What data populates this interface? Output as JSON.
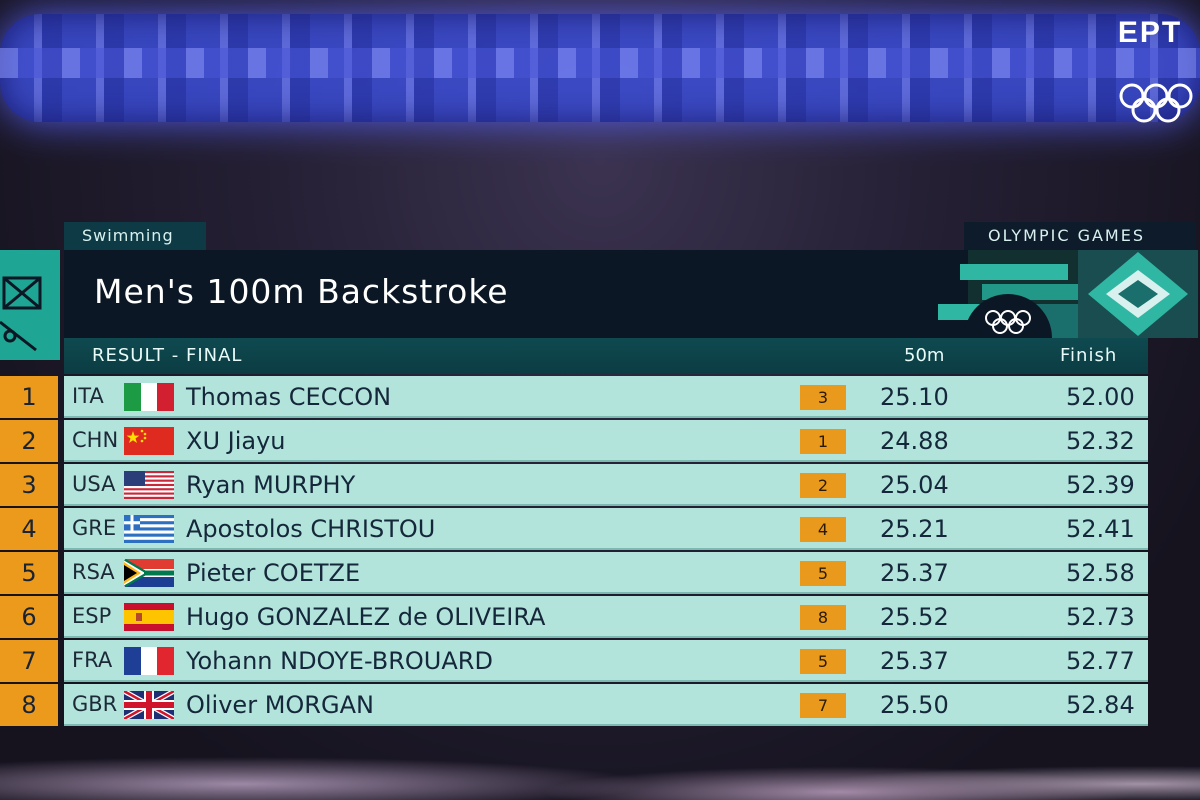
{
  "broadcaster": "EPT",
  "sport": "Swimming",
  "games": "OLYMPIC GAMES",
  "event": "Men's 100m Backstroke",
  "header": {
    "result": "RESULT - FINAL",
    "split": "50m",
    "finish": "Finish"
  },
  "colors": {
    "accent": "#ec9a1b",
    "row_bg": "#b3e4dc",
    "panel": "#0b1724",
    "teal": "#1fa593"
  },
  "results": [
    {
      "rank": "1",
      "noc": "ITA",
      "name": "Thomas CECCON",
      "lane": "3",
      "split": "25.10",
      "finish": "52.00"
    },
    {
      "rank": "2",
      "noc": "CHN",
      "name": "XU Jiayu",
      "lane": "1",
      "split": "24.88",
      "finish": "52.32"
    },
    {
      "rank": "3",
      "noc": "USA",
      "name": "Ryan MURPHY",
      "lane": "2",
      "split": "25.04",
      "finish": "52.39"
    },
    {
      "rank": "4",
      "noc": "GRE",
      "name": "Apostolos CHRISTOU",
      "lane": "4",
      "split": "25.21",
      "finish": "52.41"
    },
    {
      "rank": "5",
      "noc": "RSA",
      "name": "Pieter COETZE",
      "lane": "5",
      "split": "25.37",
      "finish": "52.58"
    },
    {
      "rank": "6",
      "noc": "ESP",
      "name": "Hugo GONZALEZ de OLIVEIRA",
      "lane": "8",
      "split": "25.52",
      "finish": "52.73"
    },
    {
      "rank": "7",
      "noc": "FRA",
      "name": "Yohann NDOYE-BROUARD",
      "lane": "5",
      "split": "25.37",
      "finish": "52.77"
    },
    {
      "rank": "8",
      "noc": "GBR",
      "name": "Oliver MORGAN",
      "lane": "7",
      "split": "25.50",
      "finish": "52.84"
    }
  ]
}
